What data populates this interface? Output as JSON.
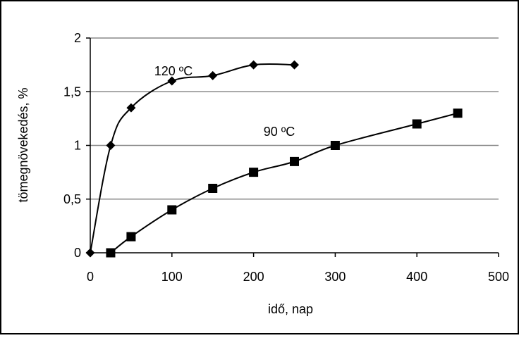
{
  "chart_data": {
    "type": "line",
    "title": "",
    "xlabel": "idő, nap",
    "ylabel": "tömegnövekedés, %",
    "xlim": [
      0,
      500
    ],
    "ylim": [
      0,
      2
    ],
    "x_ticks": [
      0,
      100,
      200,
      300,
      400,
      500
    ],
    "y_ticks": [
      0,
      0.5,
      1,
      1.5,
      2
    ],
    "x_tick_labels": [
      "0",
      "100",
      "200",
      "300",
      "400",
      "500"
    ],
    "y_tick_labels": [
      "0",
      "0,5",
      "1",
      "1,5",
      "2"
    ],
    "grid": "horizontal",
    "legend": "none",
    "series": [
      {
        "name": "120 ºC",
        "marker": "diamond",
        "color": "#000000",
        "x": [
          0,
          25,
          50,
          100,
          150,
          200,
          250
        ],
        "y": [
          0,
          1.0,
          1.35,
          1.6,
          1.65,
          1.75,
          1.75
        ]
      },
      {
        "name": "90 ºC",
        "marker": "square",
        "color": "#000000",
        "x": [
          25,
          50,
          100,
          150,
          200,
          250,
          300,
          400,
          450
        ],
        "y": [
          0,
          0.15,
          0.4,
          0.6,
          0.75,
          0.85,
          1.0,
          1.2,
          1.3
        ]
      }
    ]
  }
}
